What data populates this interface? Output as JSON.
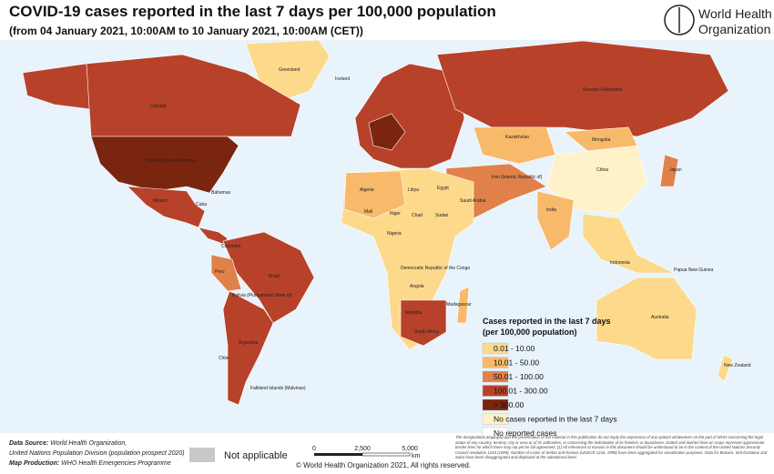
{
  "header": {
    "title": "COVID-19 cases reported in the last 7 days per 100,000 population",
    "subtitle": "(from 04 January 2021, 10:00AM  to 10 January 2021, 10:00AM (CET))"
  },
  "logo": {
    "line1": "World Health",
    "line2": "Organization"
  },
  "legend": {
    "title_line1": "Cases reported in the last 7 days",
    "title_line2": "(per 100,000 population)",
    "items": [
      {
        "label": "0.01 - 10.00",
        "color": "#fdd98c"
      },
      {
        "label": "10.01 - 50.00",
        "color": "#f8b96a"
      },
      {
        "label": "50.01 - 100.00",
        "color": "#e0814a"
      },
      {
        "label": "100.01 - 300.00",
        "color": "#b8412a"
      },
      {
        "label": "> 300.00",
        "color": "#7a2510"
      },
      {
        "label": "No cases reported in the last 7 days",
        "color": "#fff1c8"
      },
      {
        "label": "No reported cases",
        "color": "#ffffff"
      }
    ]
  },
  "map_labels": [
    "Greenland",
    "Iceland",
    "Canada",
    "United States of America",
    "Mexico",
    "Brazil",
    "Argentina",
    "Colombia",
    "Peru",
    "Bolivia (Plurinational State of)",
    "Chile",
    "Russian Federation",
    "Kazakhstan",
    "Mongolia",
    "China",
    "India",
    "Iran (Islamic Republic of)",
    "Algeria",
    "Libya",
    "Egypt",
    "Sudan",
    "Chad",
    "Niger",
    "Mali",
    "Nigeria",
    "Democratic Republic of the Congo",
    "Angola",
    "Namibia",
    "South Africa",
    "Madagascar",
    "Saudi Arabia",
    "Indonesia",
    "Australia",
    "New Zealand",
    "Papua New Guinea",
    "Japan",
    "Falkland Islands (Malvinas)",
    "Bahamas",
    "Cuba"
  ],
  "footer": {
    "data_source_label": "Data Source:",
    "data_source_text": "World Health Organization,",
    "data_source_line2": "United Nations Population Division (population prospect 2020)",
    "map_production_label": "Map Production:",
    "map_production_text": "WHO Health Emergencies Programme",
    "not_applicable": "Not applicable",
    "scale_ticks": [
      "0",
      "2,500",
      "5,000"
    ],
    "scale_unit": "km",
    "copyright": "© World Health Organization  2021,  All rights reserved.",
    "disclaimer": "The designations employed and the presentation of the material in this publication do not imply the expression of any opinion whatsoever on the part of WHO concerning the legal status of any country, territory, city or area or of its authorities, or concerning the delimitation of its frontiers or boundaries. Dotted and dashed lines on maps represent approximate border lines for which there may not yet be full agreement. [1] All references to Kosovo in this document should be understood to be in the context of the United Nations Security Council resolution 1244 (1999). Number of cases of Serbia and Kosovo (UNSCR 1244, 1999) have been aggregated for visualization purposes. Data for Bonaire, Sint Eustatius and Saba have been disaggregated and displayed at the subnational level."
  }
}
